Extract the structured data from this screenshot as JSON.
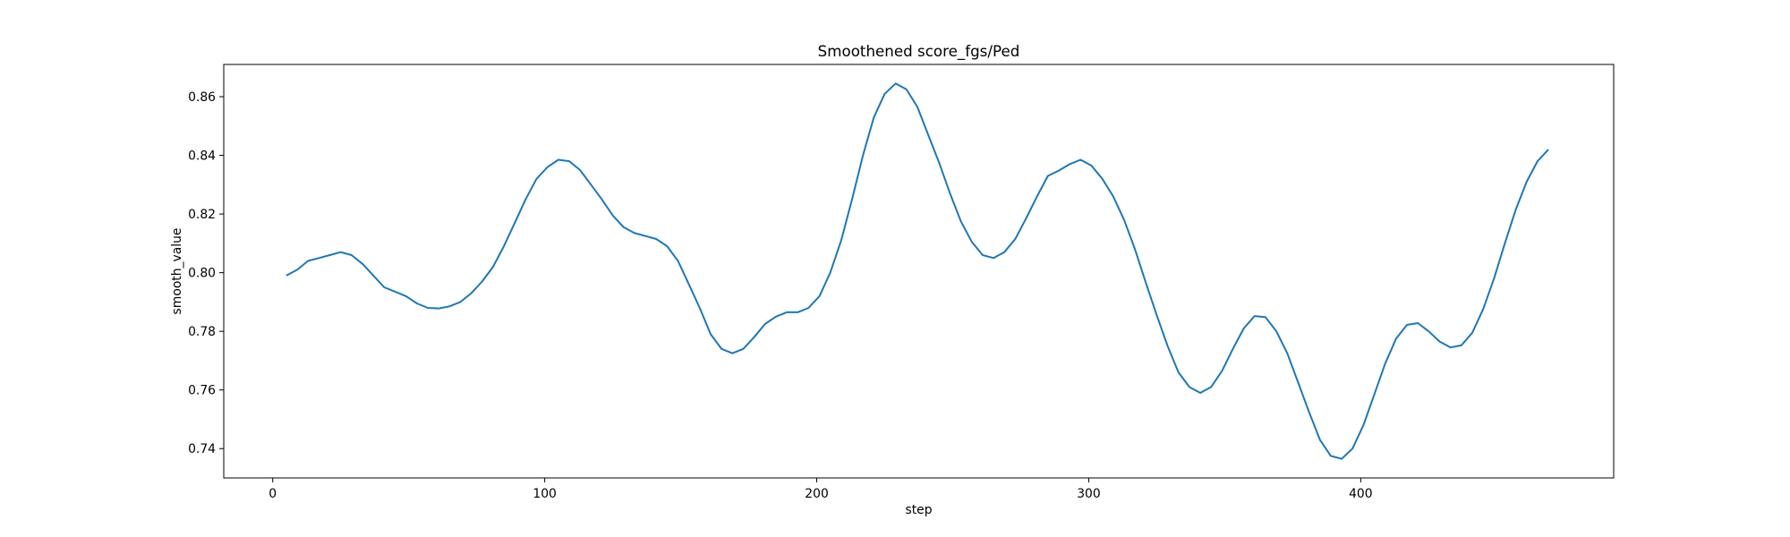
{
  "chart_data": {
    "type": "line",
    "title": "Smoothened score_fgs/Ped",
    "xlabel": "step",
    "ylabel": "smooth_value",
    "xlim": [
      -18,
      493
    ],
    "ylim": [
      0.73,
      0.871
    ],
    "xticks": [
      0,
      100,
      200,
      300,
      400
    ],
    "yticks": [
      0.74,
      0.76,
      0.78,
      0.8,
      0.82,
      0.84,
      0.86
    ],
    "ytick_labels": [
      "0.74",
      "0.76",
      "0.78",
      "0.80",
      "0.82",
      "0.84",
      "0.86"
    ],
    "grid": false,
    "line_color": "#1f77b4",
    "series": [
      {
        "x": [
          5,
          9,
          13,
          17,
          21,
          25,
          29,
          33,
          37,
          41,
          45,
          49,
          53,
          57,
          61,
          65,
          69,
          73,
          77,
          81,
          85,
          89,
          93,
          97,
          101,
          105,
          109,
          113,
          117,
          121,
          125,
          129,
          133,
          137,
          141,
          145,
          149,
          153,
          157,
          161,
          165,
          169,
          173,
          177,
          181,
          185,
          189,
          193,
          197,
          201,
          205,
          209,
          213,
          217,
          221,
          225,
          229,
          233,
          237,
          241,
          245,
          249,
          253,
          257,
          261,
          265,
          269,
          273,
          277,
          281,
          285,
          289,
          293,
          297,
          301,
          305,
          309,
          313,
          317,
          321,
          325,
          329,
          333,
          337,
          341,
          345,
          349,
          353,
          357,
          361,
          365,
          369,
          373,
          377,
          381,
          385,
          389,
          393,
          397,
          401,
          405,
          409,
          413,
          417,
          421,
          425,
          429,
          433,
          437,
          441,
          445,
          449,
          453,
          457,
          461,
          465,
          469
        ],
        "values": [
          0.799,
          0.801,
          0.804,
          0.805,
          0.806,
          0.807,
          0.806,
          0.803,
          0.799,
          0.795,
          0.7935,
          0.792,
          0.7895,
          0.788,
          0.7878,
          0.7885,
          0.79,
          0.793,
          0.797,
          0.802,
          0.809,
          0.817,
          0.825,
          0.832,
          0.836,
          0.8385,
          0.838,
          0.835,
          0.83,
          0.825,
          0.8195,
          0.8155,
          0.8135,
          0.8125,
          0.8115,
          0.809,
          0.804,
          0.796,
          0.788,
          0.779,
          0.774,
          0.7725,
          0.774,
          0.778,
          0.7825,
          0.785,
          0.7865,
          0.7865,
          0.788,
          0.792,
          0.8,
          0.811,
          0.825,
          0.84,
          0.853,
          0.861,
          0.8645,
          0.8625,
          0.8565,
          0.847,
          0.8375,
          0.827,
          0.8175,
          0.8105,
          0.806,
          0.805,
          0.807,
          0.8115,
          0.8185,
          0.826,
          0.833,
          0.8348,
          0.837,
          0.8385,
          0.8365,
          0.832,
          0.826,
          0.818,
          0.808,
          0.7965,
          0.7855,
          0.775,
          0.766,
          0.761,
          0.759,
          0.761,
          0.7665,
          0.774,
          0.781,
          0.7852,
          0.7848,
          0.78,
          0.7725,
          0.7625,
          0.7525,
          0.743,
          0.7375,
          0.7365,
          0.74,
          0.748,
          0.7585,
          0.769,
          0.7775,
          0.7822,
          0.7828,
          0.78,
          0.7765,
          0.7745,
          0.7752,
          0.7795,
          0.7875,
          0.798,
          0.81,
          0.8215,
          0.831,
          0.838,
          0.842
        ]
      }
    ]
  }
}
